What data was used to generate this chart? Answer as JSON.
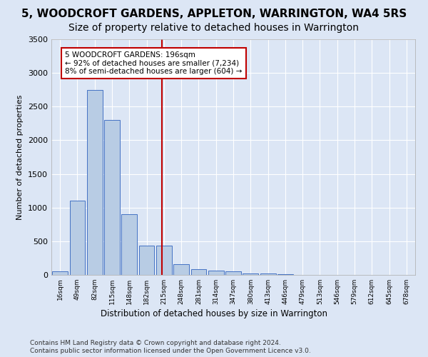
{
  "title": "5, WOODCROFT GARDENS, APPLETON, WARRINGTON, WA4 5RS",
  "subtitle": "Size of property relative to detached houses in Warrington",
  "xlabel": "Distribution of detached houses by size in Warrington",
  "ylabel": "Number of detached properties",
  "bar_values": [
    50,
    1100,
    2750,
    2300,
    900,
    430,
    430,
    160,
    90,
    60,
    50,
    20,
    20,
    10,
    5,
    3,
    2,
    1,
    1,
    0,
    0
  ],
  "categories": [
    "16sqm",
    "49sqm",
    "82sqm",
    "115sqm",
    "148sqm",
    "182sqm",
    "215sqm",
    "248sqm",
    "281sqm",
    "314sqm",
    "347sqm",
    "380sqm",
    "413sqm",
    "446sqm",
    "479sqm",
    "513sqm",
    "546sqm",
    "579sqm",
    "612sqm",
    "645sqm",
    "678sqm"
  ],
  "bar_color": "#b8cce4",
  "bar_edge_color": "#4472c4",
  "vline_x": 5.9,
  "vline_color": "#c00000",
  "annotation_text": "5 WOODCROFT GARDENS: 196sqm\n← 92% of detached houses are smaller (7,234)\n8% of semi-detached houses are larger (604) →",
  "annotation_box_color": "#c00000",
  "ylim": [
    0,
    3500
  ],
  "yticks": [
    0,
    500,
    1000,
    1500,
    2000,
    2500,
    3000,
    3500
  ],
  "title_fontsize": 11,
  "subtitle_fontsize": 10,
  "footer_line1": "Contains HM Land Registry data © Crown copyright and database right 2024.",
  "footer_line2": "Contains public sector information licensed under the Open Government Licence v3.0.",
  "background_color": "#dce6f5",
  "plot_bg_color": "#dce6f5"
}
